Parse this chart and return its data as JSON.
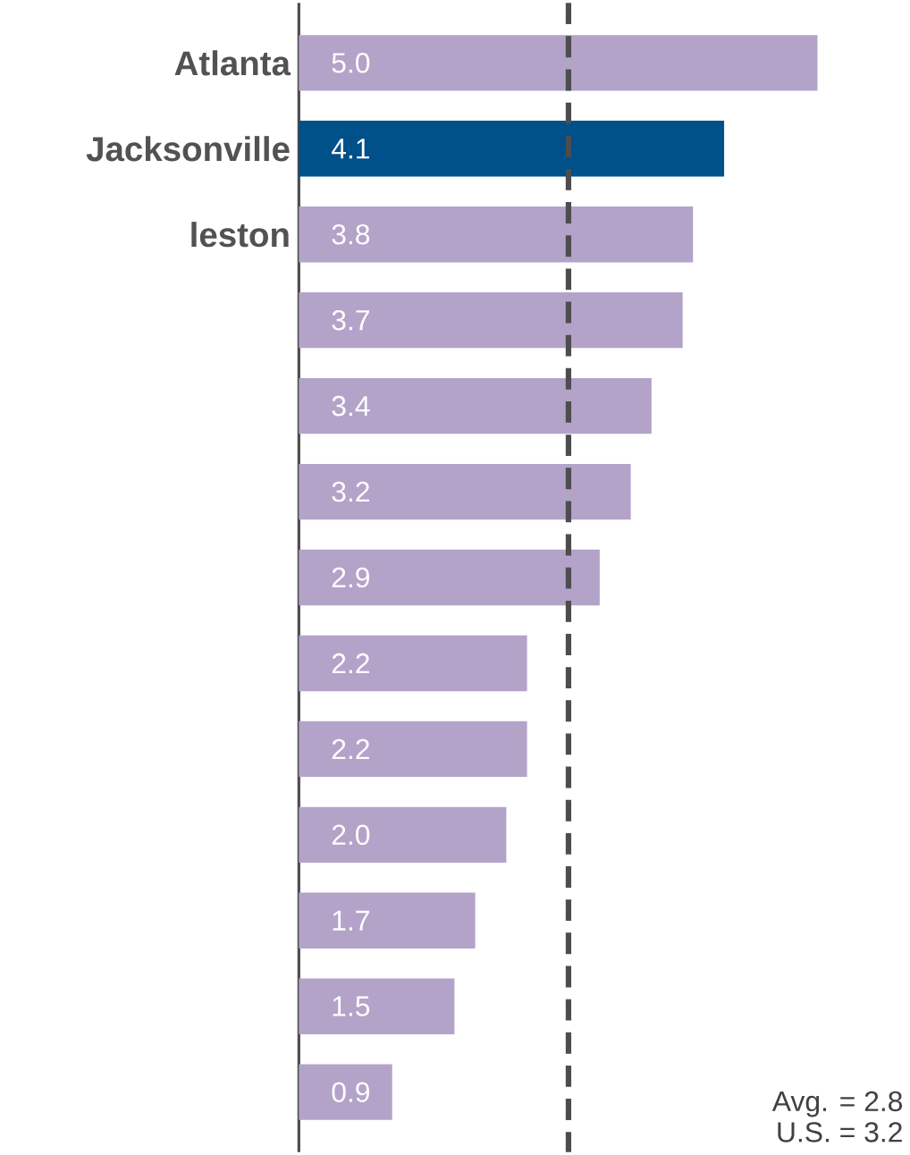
{
  "chart_data": {
    "type": "bar",
    "orientation": "horizontal",
    "categories": [
      "Atlanta",
      "Jacksonville",
      "leston",
      null,
      null,
      null,
      null,
      null,
      null,
      null,
      null,
      null,
      null
    ],
    "values": [
      5.0,
      4.1,
      3.8,
      3.7,
      3.4,
      3.2,
      2.9,
      2.2,
      2.2,
      2.0,
      1.7,
      1.5,
      0.9
    ],
    "value_labels": [
      "5.0",
      "4.1",
      "3.8",
      "3.7",
      "3.4",
      "3.2",
      "2.9",
      "2.2",
      "2.2",
      "2.0",
      "1.7",
      "1.5",
      "0.9"
    ],
    "colors": [
      "#b3a3c9",
      "#00508a",
      "#b3a3c9",
      "#b3a3c9",
      "#b3a3c9",
      "#b3a3c9",
      "#b3a3c9",
      "#b3a3c9",
      "#b3a3c9",
      "#b3a3c9",
      "#b3a3c9",
      "#b3a3c9",
      "#b3a3c9"
    ],
    "ref_lines": [
      {
        "axis": "x",
        "value": 2.6,
        "color": "#4d4d4f",
        "line_style": "dashed"
      }
    ],
    "annotations": [
      "Avg. = 2.8",
      "U.S. = 3.2"
    ],
    "grid": false
  }
}
